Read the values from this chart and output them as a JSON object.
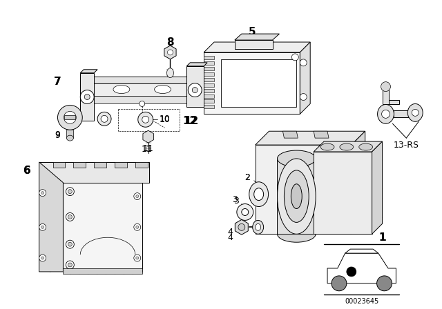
{
  "background_color": "#ffffff",
  "fig_width": 6.4,
  "fig_height": 4.48,
  "dpi": 100,
  "diagram_number": "00023645",
  "line_color": "#000000",
  "lw": 0.7,
  "label_fontsize": 9
}
